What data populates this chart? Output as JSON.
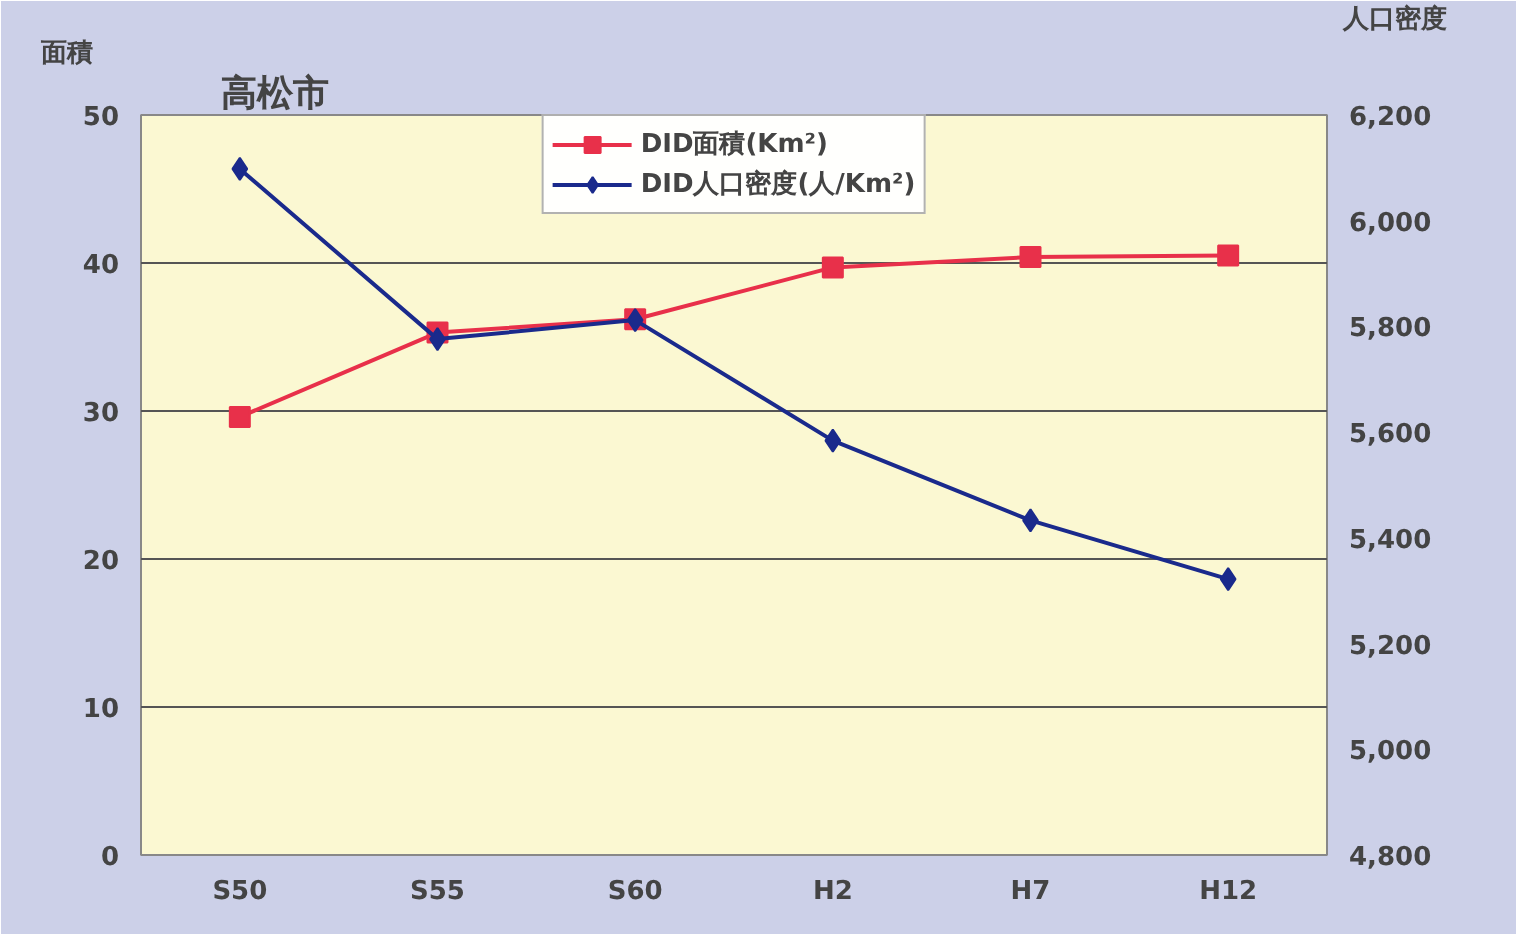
{
  "chart_data": {
    "type": "line",
    "title": "高松市",
    "ylabel": "面積",
    "y2label": "人口密度",
    "categories": [
      "S50",
      "S55",
      "S60",
      "H2",
      "H7",
      "H12"
    ],
    "series": [
      {
        "name": "DID面積(Km²)",
        "color": "#e8304a",
        "marker": "square",
        "values": [
          29.6,
          35.3,
          36.2,
          39.7,
          40.4,
          40.5
        ]
      },
      {
        "name": "DID人口密度(人/Km²)",
        "color": "#1a2a8c",
        "marker": "diamond",
        "axis": "y2",
        "values": [
          6098,
          5776,
          5812,
          5584,
          5433,
          5322
        ]
      }
    ],
    "ylim": [
      0,
      50
    ],
    "yticks": [
      0,
      10,
      20,
      30,
      40,
      50
    ],
    "y2lim": [
      4800,
      6200
    ],
    "y2ticks": [
      {
        "value": 4800,
        "label": "4,800"
      },
      {
        "value": 5000,
        "label": "5,000"
      },
      {
        "value": 5200,
        "label": "5,200"
      },
      {
        "value": 5400,
        "label": "5,400"
      },
      {
        "value": 5600,
        "label": "5,600"
      },
      {
        "value": 5800,
        "label": "5,800"
      },
      {
        "value": 6000,
        "label": "6,000"
      },
      {
        "value": 6200,
        "label": "6,200"
      }
    ],
    "grid": "y",
    "legend": "top"
  }
}
